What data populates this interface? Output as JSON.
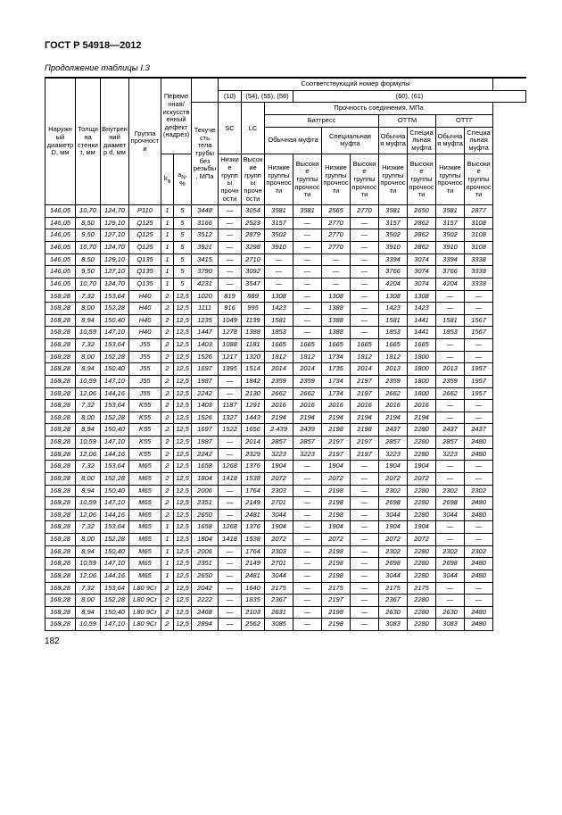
{
  "doc_id": "ГОСТ Р 54918—2012",
  "table_caption": "Продолжение таблицы I.3",
  "page_number": "182",
  "header": {
    "top_right_span": "Соответствующий номер формулы",
    "formula_groups": [
      "(10)",
      "(54), (55), (58)",
      "(60), (61)"
    ],
    "strength_label": "Прочность соединения, МПа",
    "col_D": "Наружный диаметр D, мм",
    "col_t": "Толщина стенки t, мм",
    "col_d": "Внутренний диаметр d, мм",
    "col_group": "Группа прочности",
    "col_defect": "Переменная/ искусственный дефект (надрез)",
    "col_yield": "Текучесть тела трубы без резьбы, МПа",
    "col_SC": "SC",
    "col_LC": "LC",
    "buttress": "Баттресс",
    "ottm": "ОТТМ",
    "ottg": "ОТТГ",
    "regular_coupling": "Обычная муфта",
    "special_coupling": "Специальная муфта",
    "obych_muf": "Обычная муфта",
    "spec_muf": "Специальная муфта",
    "low_groups": "Низкие группы прочности",
    "high_groups": "Высокие группы прочности",
    "ka": "k",
    "ka_sub": "a",
    "aN": "a",
    "aN_sub": "N",
    "pct": "%"
  },
  "rows": [
    [
      "146,05",
      "10,70",
      "124,70",
      "P110",
      "1",
      "5",
      "3448",
      "—",
      "3054",
      "3581",
      "3581",
      "2565",
      "2770",
      "3581",
      "2650",
      "3581",
      "2877"
    ],
    [
      "146,05",
      "8,50",
      "129,10",
      "Q125",
      "1",
      "5",
      "3166",
      "—",
      "2523",
      "3157",
      "—",
      "2770",
      "—",
      "3157",
      "2862",
      "3157",
      "3108"
    ],
    [
      "146,05",
      "9,50",
      "127,10",
      "Q125",
      "1",
      "5",
      "3512",
      "—",
      "2879",
      "3502",
      "—",
      "2770",
      "—",
      "3502",
      "2862",
      "3502",
      "3108"
    ],
    [
      "146,05",
      "10,70",
      "124,70",
      "Q125",
      "1",
      "5",
      "3921",
      "—",
      "3298",
      "3910",
      "—",
      "2770",
      "—",
      "3910",
      "2862",
      "3910",
      "3108"
    ],
    [
      "146,05",
      "8,50",
      "129,10",
      "Q135",
      "1",
      "5",
      "3415",
      "—",
      "2710",
      "—",
      "—",
      "—",
      "—",
      "3394",
      "3074",
      "3394",
      "3338"
    ],
    [
      "146,05",
      "9,50",
      "127,10",
      "Q135",
      "1",
      "5",
      "3790",
      "—",
      "3092",
      "—",
      "—",
      "—",
      "—",
      "3766",
      "3074",
      "3766",
      "3338"
    ],
    [
      "146,05",
      "10,70",
      "124,70",
      "Q135",
      "1",
      "5",
      "4231",
      "—",
      "3547",
      "—",
      "—",
      "—",
      "—",
      "4204",
      "3074",
      "4204",
      "3338"
    ],
    [
      "168,28",
      "7,32",
      "153,64",
      "H40",
      "2",
      "12,5",
      "1020",
      "819",
      "889",
      "1308",
      "—",
      "1308",
      "—",
      "1308",
      "1308",
      "—",
      "—"
    ],
    [
      "168,28",
      "8,00",
      "152,28",
      "H40",
      "2",
      "12,5",
      "1111",
      "916",
      "995",
      "1423",
      "—",
      "1388",
      "—",
      "1423",
      "1423",
      "—",
      "—"
    ],
    [
      "168,28",
      "8,94",
      "150,40",
      "H40",
      "2",
      "12,5",
      "1235",
      "1049",
      "1139",
      "1581",
      "—",
      "1388",
      "—",
      "1581",
      "1441",
      "1581",
      "1567"
    ],
    [
      "168,28",
      "10,59",
      "147,10",
      "H40",
      "2",
      "12,5",
      "1447",
      "1278",
      "1388",
      "1853",
      "—",
      "1388",
      "—",
      "1853",
      "1441",
      "1853",
      "1567"
    ],
    [
      "168,28",
      "7,32",
      "153,64",
      "J55",
      "2",
      "12,5",
      "1403",
      "1088",
      "1181",
      "1665",
      "1665",
      "1665",
      "1665",
      "1665",
      "1665",
      "—",
      "—"
    ],
    [
      "168,28",
      "8,00",
      "152,28",
      "J55",
      "2",
      "12,5",
      "1526",
      "1217",
      "1320",
      "1812",
      "1812",
      "1734",
      "1812",
      "1812",
      "1800",
      "—",
      "—"
    ],
    [
      "168,28",
      "8,94",
      "150,40",
      "J55",
      "2",
      "12,5",
      "1697",
      "1395",
      "1514",
      "2014",
      "2014",
      "1735",
      "2014",
      "2013",
      "1800",
      "2013",
      "1957"
    ],
    [
      "168,28",
      "10,59",
      "147,10",
      "J55",
      "2",
      "12,5",
      "1987",
      "—",
      "1842",
      "2359",
      "2359",
      "1734",
      "2197",
      "2359",
      "1800",
      "2359",
      "1957"
    ],
    [
      "168,28",
      "12,06",
      "144,16",
      "J55",
      "2",
      "12,5",
      "2242",
      "—",
      "2130",
      "2662",
      "2662",
      "1734",
      "2197",
      "2662",
      "1800",
      "2662",
      "1957"
    ],
    [
      "168,28",
      "7,32",
      "153,64",
      "K55",
      "2",
      "12,5",
      "1403",
      "1187",
      "1291",
      "2016",
      "2016",
      "2016",
      "2016",
      "2016",
      "2016",
      "—",
      "—"
    ],
    [
      "168,28",
      "8,00",
      "152,28",
      "K55",
      "2",
      "12,5",
      "1526",
      "1327",
      "1443",
      "2194",
      "2194",
      "2194",
      "2194",
      "2194",
      "2194",
      "—",
      "—"
    ],
    [
      "168,28",
      "8,94",
      "150,40",
      "K55",
      "2",
      "12,5",
      "1697",
      "1522",
      "1656",
      "2 439",
      "2439",
      "2198",
      "2198",
      "2437",
      "2280",
      "2437",
      "2437"
    ],
    [
      "168,28",
      "10,59",
      "147,10",
      "K55",
      "2",
      "12,5",
      "1987",
      "—",
      "2014",
      "2857",
      "2857",
      "2197",
      "2197",
      "2857",
      "2280",
      "2857",
      "2480"
    ],
    [
      "168,28",
      "12,06",
      "144,16",
      "K55",
      "2",
      "12,5",
      "2242",
      "—",
      "2329",
      "3223",
      "3223",
      "2197",
      "2197",
      "3223",
      "2280",
      "3223",
      "2480"
    ],
    [
      "168,28",
      "7,32",
      "153,64",
      "M65",
      "2",
      "12,5",
      "1658",
      "1268",
      "1376",
      "1904",
      "—",
      "1904",
      "—",
      "1904",
      "1904",
      "—",
      "—"
    ],
    [
      "168,28",
      "8,00",
      "152,28",
      "M65",
      "2",
      "12,5",
      "1804",
      "1418",
      "1538",
      "2072",
      "—",
      "2072",
      "—",
      "2072",
      "2072",
      "—",
      "—"
    ],
    [
      "168,28",
      "8,94",
      "150,40",
      "M65",
      "2",
      "12,5",
      "2006",
      "—",
      "1764",
      "2303",
      "—",
      "2198",
      "—",
      "2302",
      "2280",
      "2302",
      "2302"
    ],
    [
      "168,28",
      "10,59",
      "147,10",
      "M65",
      "2",
      "12,5",
      "2351",
      "—",
      "2149",
      "2701",
      "—",
      "2198",
      "—",
      "2698",
      "2280",
      "2698",
      "2480"
    ],
    [
      "168,28",
      "12,06",
      "144,16",
      "M65",
      "2",
      "12,5",
      "2650",
      "—",
      "2481",
      "3044",
      "—",
      "2198",
      "—",
      "3044",
      "2280",
      "3044",
      "2480"
    ],
    [
      "168,28",
      "7,32",
      "153,64",
      "M65",
      "1",
      "12,5",
      "1658",
      "1268",
      "1376",
      "1904",
      "—",
      "1904",
      "—",
      "1904",
      "1904",
      "—",
      "—"
    ],
    [
      "168,28",
      "8,00",
      "152,28",
      "M65",
      "1",
      "12,5",
      "1804",
      "1418",
      "1538",
      "2072",
      "—",
      "2072",
      "—",
      "2072",
      "2072",
      "—",
      "—"
    ],
    [
      "168,28",
      "8,94",
      "150,40",
      "M65",
      "1",
      "12,5",
      "2006",
      "—",
      "1764",
      "2303",
      "—",
      "2198",
      "—",
      "2302",
      "2280",
      "2302",
      "2302"
    ],
    [
      "168,28",
      "10,59",
      "147,10",
      "M65",
      "1",
      "12,5",
      "2351",
      "—",
      "2149",
      "2701",
      "—",
      "2198",
      "—",
      "2698",
      "2280",
      "2698",
      "2480"
    ],
    [
      "168,28",
      "12,06",
      "144,16",
      "M65",
      "1",
      "12,5",
      "2650",
      "—",
      "2481",
      "3044",
      "—",
      "2198",
      "—",
      "3044",
      "2280",
      "3044",
      "2480"
    ],
    [
      "168,28",
      "7,32",
      "153,64",
      "L80 9Cr",
      "2",
      "12,5",
      "2042",
      "—",
      "1640",
      "2175",
      "—",
      "2175",
      "—",
      "2175",
      "2175",
      "—",
      "—"
    ],
    [
      "168,28",
      "8,00",
      "152,28",
      "L80 9Cr",
      "2",
      "12,5",
      "2222",
      "—",
      "1835",
      "2367",
      "—",
      "2197",
      "—",
      "2367",
      "2280",
      "—",
      "—"
    ],
    [
      "168,28",
      "8,94",
      "150,40",
      "L80 9Cr",
      "2",
      "12,5",
      "2468",
      "—",
      "2103",
      "2631",
      "—",
      "2198",
      "—",
      "2630",
      "2280",
      "2630",
      "2480"
    ],
    [
      "168,28",
      "10,59",
      "147,10",
      "L80 9Cr",
      "2",
      "12,5",
      "2894",
      "—",
      "2562",
      "3085",
      "—",
      "2198",
      "—",
      "3083",
      "2280",
      "3083",
      "2480"
    ]
  ]
}
